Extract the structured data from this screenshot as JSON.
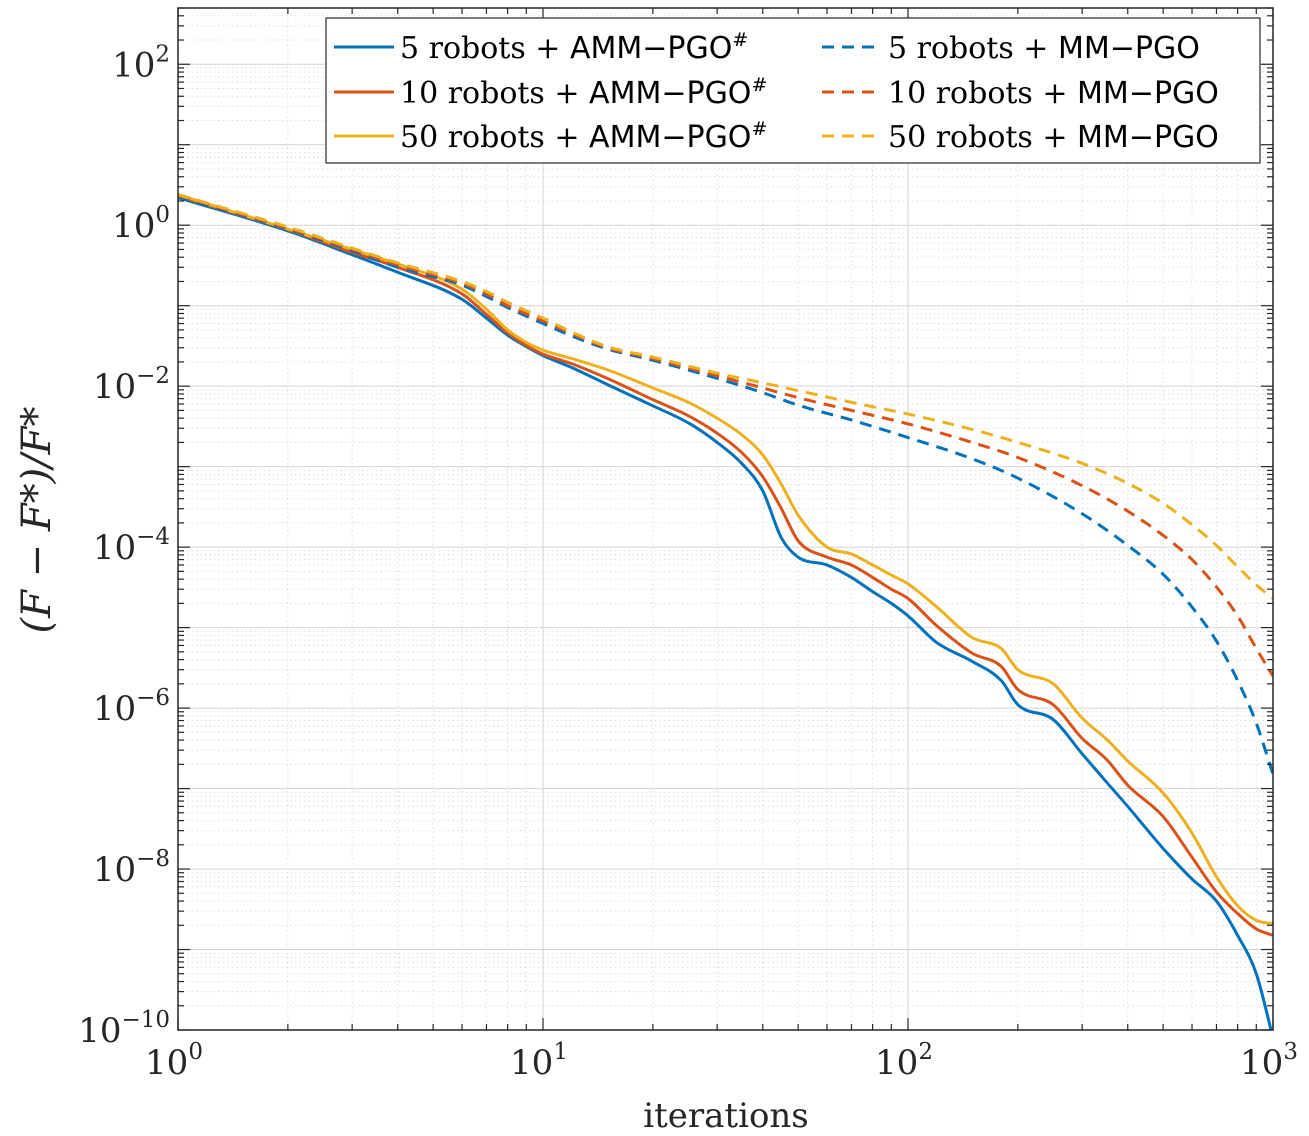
{
  "chart_data": {
    "type": "line",
    "xscale": "log",
    "yscale": "log",
    "xlim": [
      1,
      1000
    ],
    "ylim": [
      1e-10,
      500
    ],
    "grid": true,
    "xlabel": "iterations",
    "ylabel": "(F − F*)/F*",
    "title": "",
    "legend_position": "top-right",
    "x_ticks": [
      {
        "value": 1,
        "base": "10",
        "exp": "0"
      },
      {
        "value": 10,
        "base": "10",
        "exp": "1"
      },
      {
        "value": 100,
        "base": "10",
        "exp": "2"
      },
      {
        "value": 1000,
        "base": "10",
        "exp": "3"
      }
    ],
    "y_ticks": [
      {
        "value": 100,
        "base": "10",
        "exp": "2"
      },
      {
        "value": 1,
        "base": "10",
        "exp": "0"
      },
      {
        "value": 0.01,
        "base": "10",
        "exp": "−2"
      },
      {
        "value": 0.0001,
        "base": "10",
        "exp": "−4"
      },
      {
        "value": 1e-06,
        "base": "10",
        "exp": "−6"
      },
      {
        "value": 1e-08,
        "base": "10",
        "exp": "−8"
      },
      {
        "value": 1e-10,
        "base": "10",
        "exp": "−10"
      }
    ],
    "series": [
      {
        "name": "5 robots + AMM−PGO#",
        "legend": {
          "prefix": "5 robots + ",
          "method": "AMM−PGO",
          "sup": "#"
        },
        "color": "#0072BD",
        "dash": "solid",
        "x": [
          1,
          2,
          3,
          4,
          6,
          7,
          8,
          9,
          10,
          12,
          15,
          20,
          25,
          30,
          35,
          40,
          45,
          50,
          60,
          70,
          80,
          90,
          100,
          120,
          150,
          180,
          200,
          250,
          300,
          350,
          400,
          500,
          600,
          700,
          800,
          900,
          1000
        ],
        "y": [
          2.2,
          0.85,
          0.43,
          0.26,
          0.12,
          0.07,
          0.043,
          0.031,
          0.024,
          0.017,
          0.0105,
          0.0057,
          0.0035,
          0.002,
          0.0011,
          0.0005,
          0.00013,
          7.5e-05,
          6e-05,
          4.2e-05,
          2.8e-05,
          2e-05,
          1.4e-05,
          6.5e-06,
          3.8e-06,
          2.2e-06,
          1.1e-06,
          7.2e-07,
          2.7e-07,
          1.2e-07,
          6e-08,
          1.8e-08,
          7.5e-09,
          4e-09,
          1.5e-09,
          5e-10,
          8e-11
        ]
      },
      {
        "name": "10 robots + AMM−PGO#",
        "legend": {
          "prefix": "10 robots + ",
          "method": "AMM−PGO",
          "sup": "#"
        },
        "color": "#D95319",
        "dash": "solid",
        "x": [
          1,
          2,
          3,
          4,
          6,
          7,
          8,
          9,
          10,
          12,
          15,
          20,
          25,
          30,
          35,
          40,
          45,
          50,
          60,
          70,
          80,
          90,
          100,
          120,
          150,
          180,
          200,
          250,
          300,
          350,
          400,
          500,
          600,
          700,
          800,
          900,
          1000
        ],
        "y": [
          2.3,
          0.88,
          0.46,
          0.3,
          0.14,
          0.078,
          0.046,
          0.032,
          0.025,
          0.019,
          0.0125,
          0.0068,
          0.0043,
          0.0026,
          0.0015,
          0.00075,
          0.0003,
          0.00012,
          7.5e-05,
          6e-05,
          4.2e-05,
          3e-05,
          2.3e-05,
          1.05e-05,
          4.8e-06,
          3.3e-06,
          1.7e-06,
          1.1e-06,
          4.2e-07,
          2.3e-07,
          1.1e-07,
          4.5e-08,
          1.4e-08,
          5.2e-09,
          2.8e-09,
          1.8e-09,
          1.5e-09
        ]
      },
      {
        "name": "50 robots + AMM−PGO#",
        "legend": {
          "prefix": "50 robots + ",
          "method": "AMM−PGO",
          "sup": "#"
        },
        "color": "#EDB120",
        "dash": "solid",
        "x": [
          1,
          2,
          3,
          4,
          6,
          7,
          8,
          9,
          10,
          12,
          15,
          20,
          25,
          30,
          35,
          40,
          45,
          50,
          60,
          70,
          80,
          90,
          100,
          120,
          150,
          180,
          200,
          250,
          300,
          350,
          400,
          500,
          600,
          700,
          800,
          900,
          1000
        ],
        "y": [
          2.4,
          0.9,
          0.5,
          0.33,
          0.16,
          0.09,
          0.05,
          0.035,
          0.028,
          0.022,
          0.016,
          0.0095,
          0.0063,
          0.004,
          0.0025,
          0.0014,
          0.0006,
          0.00025,
          0.0001,
          8.2e-05,
          6e-05,
          4.5e-05,
          3.5e-05,
          1.8e-05,
          7.5e-06,
          5.5e-06,
          3e-06,
          2e-06,
          7.5e-07,
          4.1e-07,
          2.2e-07,
          8.8e-08,
          2.8e-08,
          8e-09,
          3.5e-09,
          2.3e-09,
          2.1e-09
        ]
      },
      {
        "name": "5 robots + MM−PGO",
        "legend": {
          "prefix": "5 robots + ",
          "method": "MM−PGO",
          "sup": ""
        },
        "color": "#0072BD",
        "dash": "dashed",
        "x": [
          1,
          2,
          3,
          4,
          6,
          7,
          8,
          10,
          12,
          15,
          20,
          30,
          40,
          50,
          70,
          100,
          150,
          200,
          300,
          400,
          500,
          600,
          700,
          800,
          900,
          1000
        ],
        "y": [
          2.3,
          0.9,
          0.48,
          0.3,
          0.18,
          0.13,
          0.095,
          0.06,
          0.042,
          0.029,
          0.021,
          0.0125,
          0.0083,
          0.0058,
          0.0038,
          0.0023,
          0.00125,
          0.00072,
          0.00026,
          0.000105,
          4.6e-05,
          1.8e-05,
          6.8e-06,
          2.2e-06,
          6.5e-07,
          1.5e-07
        ]
      },
      {
        "name": "10 robots + MM−PGO",
        "legend": {
          "prefix": "10 robots + ",
          "method": "MM−PGO",
          "sup": ""
        },
        "color": "#D95319",
        "dash": "dashed",
        "x": [
          1,
          2,
          3,
          4,
          6,
          7,
          8,
          10,
          12,
          15,
          20,
          30,
          40,
          50,
          70,
          100,
          150,
          200,
          300,
          400,
          500,
          600,
          700,
          800,
          900,
          1000
        ],
        "y": [
          2.35,
          0.92,
          0.5,
          0.32,
          0.19,
          0.14,
          0.1,
          0.065,
          0.045,
          0.03,
          0.022,
          0.0135,
          0.0095,
          0.0072,
          0.005,
          0.0034,
          0.002,
          0.0013,
          0.00058,
          0.00028,
          0.00014,
          7e-05,
          3.2e-05,
          1.4e-05,
          5.5e-06,
          2.5e-06
        ]
      },
      {
        "name": "50 robots + MM−PGO",
        "legend": {
          "prefix": "50 robots + ",
          "method": "MM−PGO",
          "sup": ""
        },
        "color": "#EDB120",
        "dash": "dashed",
        "x": [
          1,
          2,
          3,
          4,
          6,
          7,
          8,
          10,
          12,
          15,
          20,
          30,
          40,
          50,
          70,
          100,
          150,
          200,
          300,
          400,
          500,
          600,
          700,
          800,
          900,
          1000
        ],
        "y": [
          2.4,
          0.95,
          0.52,
          0.34,
          0.2,
          0.15,
          0.11,
          0.07,
          0.047,
          0.031,
          0.023,
          0.0145,
          0.011,
          0.0088,
          0.0063,
          0.0045,
          0.0029,
          0.002,
          0.0011,
          0.00062,
          0.00035,
          0.00019,
          0.000105,
          5.7e-05,
          3.4e-05,
          2.3e-05
        ]
      }
    ]
  }
}
